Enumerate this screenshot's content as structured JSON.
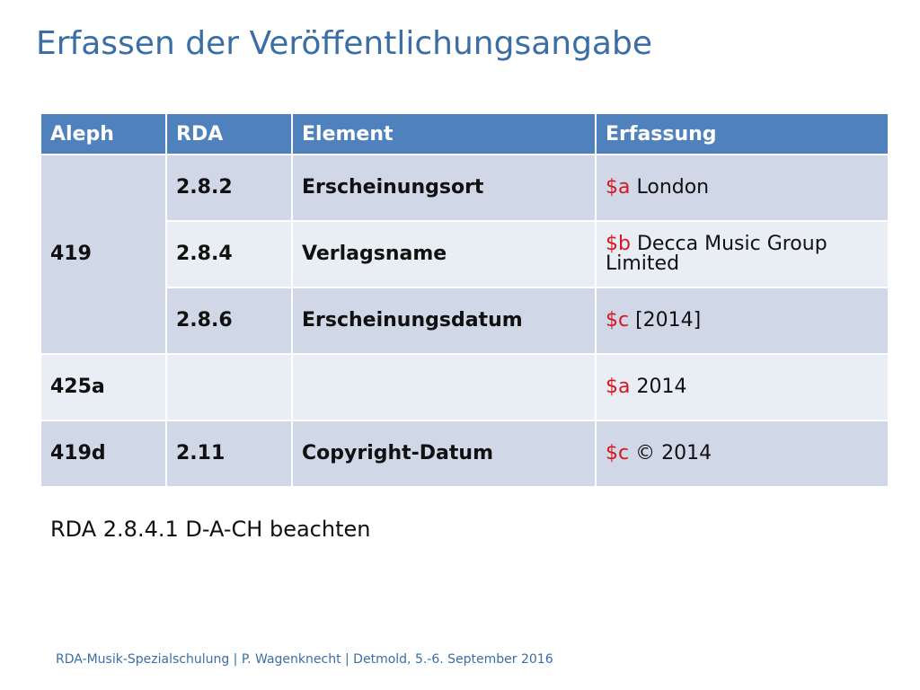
{
  "title": "Erfassen der Veröffentlichungsangabe",
  "table": {
    "headers": [
      "Aleph",
      "RDA",
      "Element",
      "Erfassung"
    ],
    "rows": [
      {
        "aleph": "419",
        "rda": "2.8.2",
        "element": "Erscheinungsort",
        "code": "$a",
        "value": "London"
      },
      {
        "rda": "2.8.4",
        "element": "Verlagsname",
        "code": "$b",
        "value": "Decca Music Group Limited"
      },
      {
        "rda": "2.8.6",
        "element": "Erscheinungsdatum",
        "code": "$c",
        "value": "[2014]"
      },
      {
        "aleph": "425a",
        "rda": "",
        "element": "",
        "code": "$a",
        "value": "2014"
      },
      {
        "aleph": "419d",
        "rda": "2.11",
        "element": "Copyright-Datum",
        "code": "$c",
        "value": "© 2014"
      }
    ]
  },
  "note": "RDA 2.8.4.1 D-A-CH beachten",
  "footer": "RDA-Musik-Spezialschulung | P. Wagenknecht | Detmold, 5.-6. September 2016",
  "colors": {
    "title": "#3a6ea5",
    "header_bg": "#4f81bd",
    "row_dark": "#d0d8e8",
    "row_light": "#e9edf4",
    "subfield_code": "#d6181e"
  }
}
